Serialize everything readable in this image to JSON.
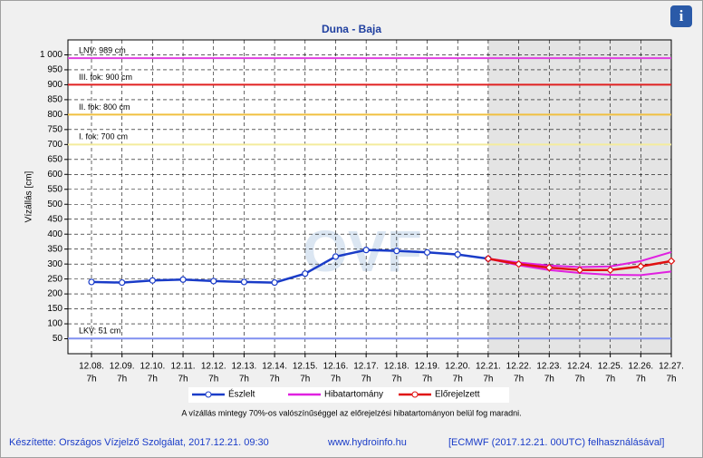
{
  "chart_data": {
    "type": "line",
    "title": "Duna - Baja",
    "info_icon": "i",
    "watermark": "OVF",
    "ylabel": "Vízállás [cm]",
    "categories": [
      "12.08.",
      "12.09.",
      "12.10.",
      "12.11.",
      "12.12.",
      "12.13.",
      "12.14.",
      "12.15.",
      "12.16.",
      "12.17.",
      "12.18.",
      "12.19.",
      "12.20.",
      "12.21.",
      "12.22.",
      "12.23.",
      "12.24.",
      "12.25.",
      "12.26.",
      "12.27."
    ],
    "category_times": [
      "7h",
      "7h",
      "7h",
      "7h",
      "7h",
      "7h",
      "7h",
      "7h",
      "7h",
      "7h",
      "7h",
      "7h",
      "7h",
      "7h",
      "7h",
      "7h",
      "7h",
      "7h",
      "7h",
      "7h"
    ],
    "ylim": [
      0,
      1050
    ],
    "yticks": [
      50,
      100,
      150,
      200,
      250,
      300,
      350,
      400,
      450,
      500,
      550,
      600,
      650,
      700,
      750,
      800,
      850,
      900,
      950,
      {
        "value": 1000,
        "label": "1 000"
      }
    ],
    "grid": true,
    "shade_from": "12.21.",
    "reference_lines": [
      {
        "label": "LNV: 989 cm",
        "value": 989,
        "color": "#e040e0"
      },
      {
        "label": "III. fok: 900 cm",
        "value": 900,
        "color": "#e02020"
      },
      {
        "label": "II. fok: 800 cm",
        "value": 800,
        "color": "#f0c040"
      },
      {
        "label": "I. fok: 700 cm",
        "value": 700,
        "color": "#f4ec9c"
      },
      {
        "label": "LKV: 51 cm",
        "value": 51,
        "color": "#8090f0"
      }
    ],
    "series": [
      {
        "name": "Észlelt",
        "color": "#1a3cc8",
        "values": [
          240,
          238,
          245,
          248,
          243,
          240,
          238,
          268,
          325,
          347,
          344,
          339,
          332,
          318,
          null,
          null,
          null,
          null,
          null,
          null
        ]
      },
      {
        "name": "Hibatartomány",
        "color": "#e020e0",
        "upper": [
          null,
          null,
          null,
          null,
          null,
          null,
          null,
          null,
          null,
          null,
          null,
          null,
          null,
          318,
          305,
          295,
          290,
          292,
          310,
          340
        ],
        "lower": [
          null,
          null,
          null,
          null,
          null,
          null,
          null,
          null,
          null,
          null,
          null,
          null,
          null,
          318,
          296,
          280,
          270,
          264,
          263,
          275
        ]
      },
      {
        "name": "Előrejelzett",
        "color": "#e01010",
        "values": [
          null,
          null,
          null,
          null,
          null,
          null,
          null,
          null,
          null,
          null,
          null,
          null,
          null,
          318,
          300,
          288,
          280,
          280,
          292,
          310
        ]
      }
    ],
    "note": "A vízállás mintegy 70%-os valószínűséggel az előrejelzési hibatartományon belül fog maradni.",
    "footer": [
      "Készítette: Országos Vízjelző Szolgálat, 2017.12.21. 09:30",
      "www.hydroinfo.hu",
      "[ECMWF (2017.12.21. 00UTC) felhasználásával]"
    ]
  }
}
